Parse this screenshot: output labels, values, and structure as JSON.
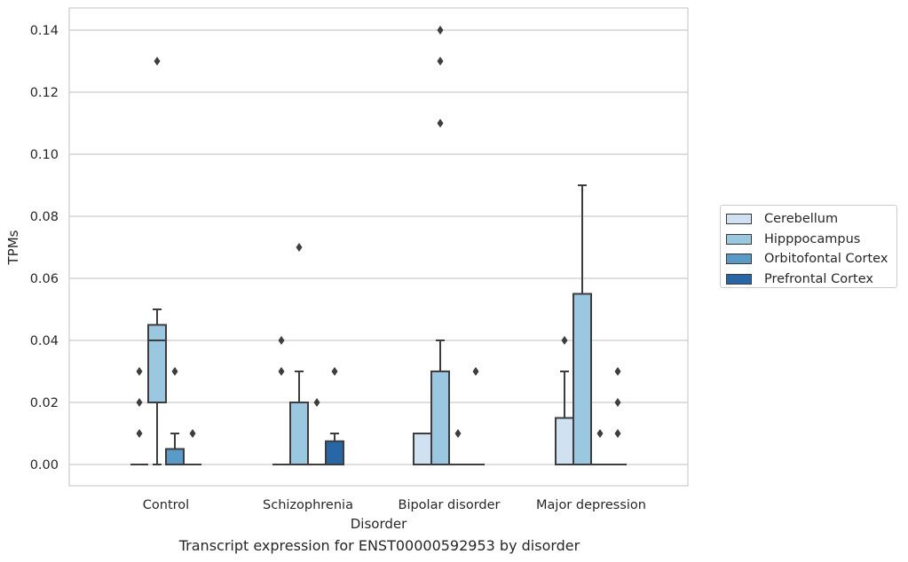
{
  "chart_data": {
    "type": "box",
    "xlabel": "Disorder",
    "ylabel": "TPMs",
    "ylim": [
      -0.007,
      0.147
    ],
    "yticks": [
      0.0,
      0.02,
      0.04,
      0.06,
      0.08,
      0.1,
      0.12,
      0.14
    ],
    "ytick_labels": [
      "0.00",
      "0.02",
      "0.04",
      "0.06",
      "0.08",
      "0.10",
      "0.12",
      "0.14"
    ],
    "grid": true,
    "legend_position": "outside-right",
    "categories": [
      "Control",
      "Schizophrenia",
      "Bipolar disorder",
      "Major depression"
    ],
    "series": [
      {
        "name": "Cerebellum",
        "color": "#d0e1f2",
        "boxes": [
          {
            "q1": 0,
            "median": 0,
            "q3": 0,
            "whisker_low": 0,
            "whisker_high": 0,
            "outliers": [
              0.01,
              0.02,
              0.03
            ]
          },
          {
            "q1": 0,
            "median": 0,
            "q3": 0,
            "whisker_low": 0,
            "whisker_high": 0,
            "outliers": [
              0.03,
              0.04
            ]
          },
          {
            "q1": 0,
            "median": 0,
            "q3": 0.01,
            "whisker_low": 0,
            "whisker_high": 0.01,
            "outliers": []
          },
          {
            "q1": 0,
            "median": 0,
            "q3": 0.015,
            "whisker_low": 0,
            "whisker_high": 0.03,
            "outliers": [
              0.04
            ]
          }
        ]
      },
      {
        "name": "Hipppocampus",
        "color": "#9ac8e0",
        "boxes": [
          {
            "q1": 0.02,
            "median": 0.04,
            "q3": 0.045,
            "whisker_low": 0,
            "whisker_high": 0.05,
            "outliers": [
              0.13
            ]
          },
          {
            "q1": 0,
            "median": 0,
            "q3": 0.02,
            "whisker_low": 0,
            "whisker_high": 0.03,
            "outliers": [
              0.07
            ]
          },
          {
            "q1": 0,
            "median": 0,
            "q3": 0.03,
            "whisker_low": 0,
            "whisker_high": 0.04,
            "outliers": [
              0.11,
              0.13,
              0.14
            ]
          },
          {
            "q1": 0,
            "median": 0,
            "q3": 0.055,
            "whisker_low": 0,
            "whisker_high": 0.09,
            "outliers": []
          }
        ]
      },
      {
        "name": "Orbitofontal Cortex",
        "color": "#5a9ac6",
        "boxes": [
          {
            "q1": 0,
            "median": 0,
            "q3": 0.005,
            "whisker_low": 0,
            "whisker_high": 0.01,
            "outliers": [
              0.03
            ]
          },
          {
            "q1": 0,
            "median": 0,
            "q3": 0,
            "whisker_low": 0,
            "whisker_high": 0,
            "outliers": [
              0.02
            ]
          },
          {
            "q1": 0,
            "median": 0,
            "q3": 0,
            "whisker_low": 0,
            "whisker_high": 0,
            "outliers": [
              0.01
            ]
          },
          {
            "q1": 0,
            "median": 0,
            "q3": 0,
            "whisker_low": 0,
            "whisker_high": 0,
            "outliers": [
              0.01
            ]
          }
        ]
      },
      {
        "name": "Prefrontal Cortex",
        "color": "#2866a6",
        "boxes": [
          {
            "q1": 0,
            "median": 0,
            "q3": 0,
            "whisker_low": 0,
            "whisker_high": 0,
            "outliers": [
              0.01
            ]
          },
          {
            "q1": 0,
            "median": 0,
            "q3": 0.0075,
            "whisker_low": 0,
            "whisker_high": 0.01,
            "outliers": [
              0.03
            ]
          },
          {
            "q1": 0,
            "median": 0,
            "q3": 0,
            "whisker_low": 0,
            "whisker_high": 0,
            "outliers": [
              0.03
            ]
          },
          {
            "q1": 0,
            "median": 0,
            "q3": 0,
            "whisker_low": 0,
            "whisker_high": 0,
            "outliers": [
              0.01,
              0.02,
              0.03
            ]
          }
        ]
      }
    ]
  },
  "caption": "Transcript expression for ENST00000592953 by disorder"
}
